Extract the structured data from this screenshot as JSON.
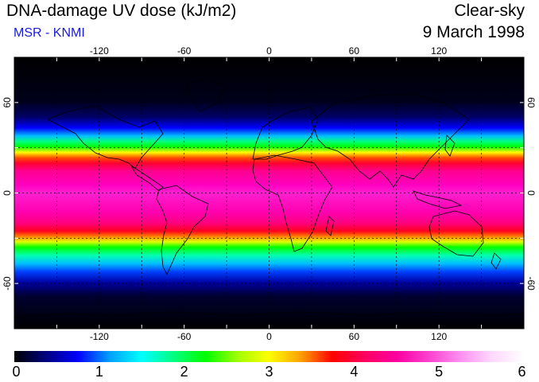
{
  "header": {
    "title": "DNA-damage UV dose (kJ/m2)",
    "source": "MSR - KNMI",
    "condition": "Clear-sky",
    "date": "9 March 1998"
  },
  "map": {
    "projection": "equirectangular",
    "lon_range": [
      -180,
      180
    ],
    "lat_range": [
      -90,
      90
    ],
    "lon_ticks": [
      "-120",
      "-60",
      "0",
      "60",
      "120"
    ],
    "lat_ticks": [
      "60",
      "0",
      "-60"
    ],
    "grid_lon": [
      -150,
      -120,
      -90,
      -60,
      -30,
      0,
      30,
      60,
      90,
      120,
      150
    ],
    "grid_lat": [
      -60,
      -30,
      0,
      30,
      60
    ],
    "grid_style": "dotted"
  },
  "colorbar": {
    "labels": [
      "0",
      "1",
      "2",
      "3",
      "4",
      "5",
      "6"
    ],
    "min": 0,
    "max": 6,
    "colors": [
      "#000000",
      "#000080",
      "#0000ff",
      "#00a0ff",
      "#00ffff",
      "#00ff80",
      "#00ff00",
      "#a0ff00",
      "#ffff00",
      "#ffa000",
      "#ff0000",
      "#ff0060",
      "#ff00a0",
      "#ff40d0",
      "#ff90f0",
      "#ffd8ff",
      "#ffffff"
    ]
  }
}
